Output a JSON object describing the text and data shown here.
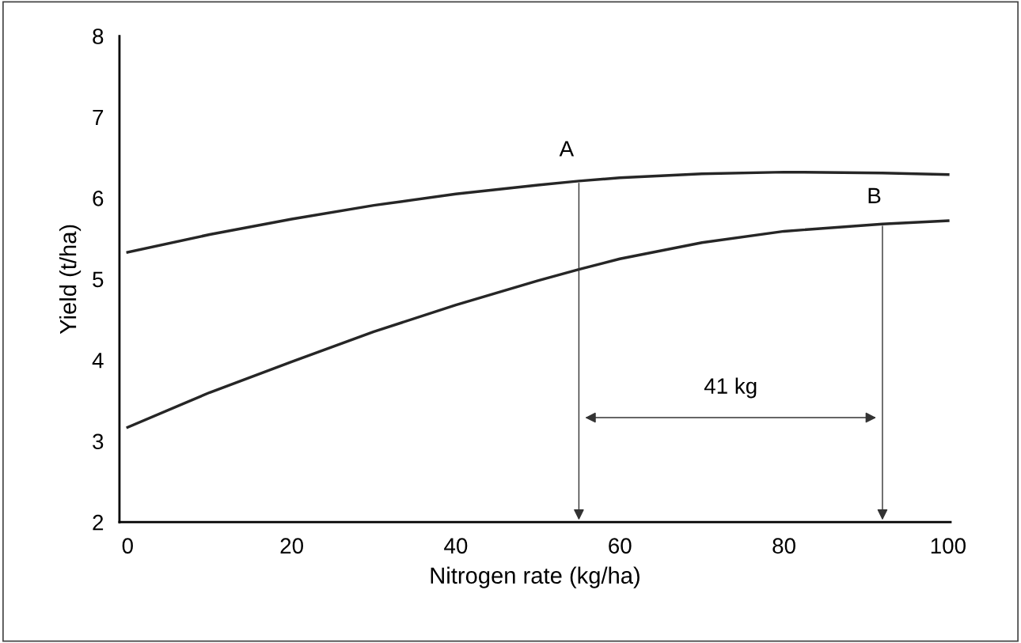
{
  "chart_data": {
    "type": "line",
    "xlabel": "Nitrogen rate (kg/ha)",
    "ylabel": "Yield (t/ha)",
    "x": [
      0,
      10,
      20,
      30,
      40,
      50,
      55,
      60,
      70,
      80,
      92,
      100
    ],
    "series": [
      {
        "color": "#262626",
        "values": [
          5.33,
          5.55,
          5.74,
          5.91,
          6.05,
          6.16,
          6.21,
          6.25,
          6.3,
          6.32,
          6.31,
          6.29
        ]
      },
      {
        "color": "#262626",
        "values": [
          3.17,
          3.6,
          3.98,
          4.35,
          4.68,
          4.98,
          5.12,
          5.25,
          5.45,
          5.59,
          5.68,
          5.72
        ]
      }
    ],
    "annotations": [
      {
        "text": "A",
        "x": 55,
        "y": 6.21
      },
      {
        "text": "B",
        "x": 92,
        "y": 5.68
      },
      "41 kg"
    ],
    "xlim": [
      -1,
      100.3
    ],
    "ylim": [
      2,
      8
    ],
    "xticks": [
      0,
      20,
      40,
      60,
      80,
      100
    ],
    "yticks": [
      2,
      3,
      4,
      5,
      6,
      7,
      8
    ],
    "grid": false,
    "legend": false
  }
}
